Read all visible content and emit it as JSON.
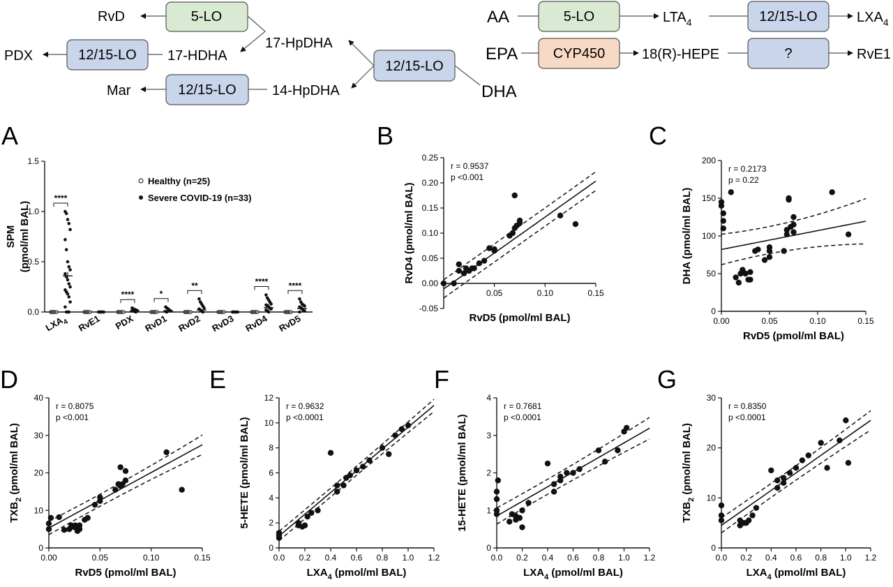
{
  "pathways": {
    "nodes": {
      "rvd": "RvD",
      "pdx": "PDX",
      "mar": "Mar",
      "hdha17": "17-HDHA",
      "hpdha14": "14-HpDHA",
      "hpdha17": "17-HpDHA",
      "dha": "DHA",
      "aa": "AA",
      "epa": "EPA",
      "lta4": "LTA",
      "lta4_sub": "4",
      "lxa4": "LXA",
      "lxa4_sub": "4",
      "hepe18r": "18(R)-HEPE",
      "rve1": "RvE1"
    },
    "enzymes": {
      "lo5": "5-LO",
      "lo1215": "12/15-LO",
      "cyp450": "CYP450",
      "unknown": "?"
    },
    "enzyme_colors": {
      "lo5": "#d9ead3",
      "lo1215": "#c9d5ea",
      "cyp450": "#f8d9c6"
    }
  },
  "chart_data": [
    {
      "panel": "A",
      "type": "scatter",
      "ylabel": "SPM",
      "ylabel2": "(pmol/ml BAL)",
      "ylim": [
        0,
        1.5
      ],
      "yticks": [
        "0.0",
        "0.5",
        "1.0",
        "1.5"
      ],
      "categories": [
        "LXA4",
        "RvE1",
        "PDX",
        "RvD1",
        "RvD2",
        "RvD3",
        "RvD4",
        "RvD5"
      ],
      "category_labels": [
        {
          "text": "LXA",
          "sub": "4"
        },
        {
          "text": "RvE1",
          "sub": ""
        },
        {
          "text": "PDX",
          "sub": ""
        },
        {
          "text": "RvD1",
          "sub": ""
        },
        {
          "text": "RvD2",
          "sub": ""
        },
        {
          "text": "RvD3",
          "sub": ""
        },
        {
          "text": "RvD4",
          "sub": ""
        },
        {
          "text": "RvD5",
          "sub": ""
        }
      ],
      "series": [
        {
          "name": "Healthy (n=25)",
          "marker": "open-circle",
          "values": [
            [
              0,
              0,
              0,
              0,
              0,
              0
            ],
            [
              0,
              0,
              0,
              0,
              0,
              0
            ],
            [
              0,
              0,
              0,
              0,
              0,
              0
            ],
            [
              0,
              0,
              0,
              0,
              0,
              0
            ],
            [
              0,
              0,
              0,
              0,
              0,
              0
            ],
            [
              0,
              0,
              0,
              0,
              0,
              0
            ],
            [
              0,
              0,
              0,
              0,
              0,
              0
            ],
            [
              0,
              0,
              0,
              0,
              0,
              0
            ]
          ]
        },
        {
          "name": "Severe COVID-19 (n=33)",
          "marker": "filled-circle",
          "values": [
            [
              1.0,
              0.98,
              0.92,
              0.88,
              0.82,
              0.72,
              0.62,
              0.5,
              0.45,
              0.42,
              0.38,
              0.35,
              0.32,
              0.28,
              0.25,
              0.22,
              0.2,
              0.18,
              0.15,
              0.1,
              0.05,
              0,
              0,
              0
            ],
            [
              0,
              0,
              0,
              0,
              0,
              0,
              0
            ],
            [
              0.04,
              0.03,
              0.025,
              0.02,
              0.015,
              0.01,
              0.01,
              0.005,
              0
            ],
            [
              0.05,
              0.04,
              0.03,
              0.02,
              0.01,
              0.005,
              0
            ],
            [
              0.13,
              0.1,
              0.08,
              0.06,
              0.04,
              0.03,
              0.02,
              0.01,
              0
            ],
            [
              0,
              0,
              0,
              0,
              0,
              0
            ],
            [
              0.17,
              0.14,
              0.12,
              0.1,
              0.08,
              0.07,
              0.06,
              0.05,
              0.04,
              0.03,
              0.02,
              0.01,
              0
            ],
            [
              0.13,
              0.1,
              0.08,
              0.07,
              0.06,
              0.05,
              0.04,
              0.03,
              0.02,
              0.01,
              0
            ]
          ],
          "means": [
            0.36,
            0,
            0.012,
            0.012,
            0.02,
            0,
            0.043,
            0.035
          ]
        }
      ],
      "significance": [
        {
          "category": "LXA4",
          "label": "****"
        },
        {
          "category": "PDX",
          "label": "****"
        },
        {
          "category": "RvD1",
          "label": "*"
        },
        {
          "category": "RvD2",
          "label": "**"
        },
        {
          "category": "RvD4",
          "label": "****"
        },
        {
          "category": "RvD5",
          "label": "****"
        }
      ]
    },
    {
      "panel": "B",
      "type": "scatter",
      "xlabel": "RvD5 (pmol/ml BAL)",
      "ylabel": "RvD4 (pmol/ml BAL)",
      "ylabel_sub": "",
      "xlim": [
        0,
        0.15
      ],
      "ylim": [
        -0.05,
        0.25
      ],
      "xticks": [
        "0.05",
        "0.10",
        "0.15"
      ],
      "yticks": [
        "-0.05",
        "0.00",
        "0.05",
        "0.10",
        "0.15",
        "0.20",
        "0.25"
      ],
      "annotation": [
        "r = 0.9537",
        "p <0.001"
      ],
      "fit": {
        "intercept": -0.011,
        "slope": 1.43,
        "ci": 0.018,
        "ci_growth": 0.12
      },
      "points": [
        [
          0,
          0
        ],
        [
          0.01,
          0
        ],
        [
          0.015,
          0.038
        ],
        [
          0.015,
          0.025
        ],
        [
          0.02,
          0.02
        ],
        [
          0.022,
          0.03
        ],
        [
          0.025,
          0.025
        ],
        [
          0.028,
          0.03
        ],
        [
          0.03,
          0.03
        ],
        [
          0.035,
          0.04
        ],
        [
          0.04,
          0.045
        ],
        [
          0.045,
          0.07
        ],
        [
          0.05,
          0.065
        ],
        [
          0.05,
          0.068
        ],
        [
          0.065,
          0.095
        ],
        [
          0.068,
          0.1
        ],
        [
          0.07,
          0.175
        ],
        [
          0.07,
          0.11
        ],
        [
          0.072,
          0.115
        ],
        [
          0.075,
          0.12
        ],
        [
          0.075,
          0.125
        ],
        [
          0.115,
          0.135
        ],
        [
          0.13,
          0.118
        ]
      ]
    },
    {
      "panel": "C",
      "type": "scatter",
      "xlabel": "RvD5 (pmol/ml BAL)",
      "ylabel": "DHA (pmol/ml BAL)",
      "ylabel_sub": "",
      "xlim": [
        0,
        0.15
      ],
      "ylim": [
        0,
        200
      ],
      "xticks": [
        "0.00",
        "0.05",
        "0.10",
        "0.15"
      ],
      "yticks": [
        "0",
        "50",
        "100",
        "150",
        "200"
      ],
      "annotation": [
        "r = 0.2173",
        "p = 0.22"
      ],
      "fit": {
        "intercept": 82,
        "slope": 250,
        "ci": 18,
        "ci_growth": 2200
      },
      "points": [
        [
          0,
          145
        ],
        [
          0,
          140
        ],
        [
          0.002,
          130
        ],
        [
          0.002,
          120
        ],
        [
          0.002,
          110
        ],
        [
          0.01,
          158
        ],
        [
          0.015,
          45
        ],
        [
          0.018,
          38
        ],
        [
          0.02,
          50
        ],
        [
          0.022,
          55
        ],
        [
          0.025,
          50
        ],
        [
          0.028,
          42
        ],
        [
          0.03,
          42
        ],
        [
          0.03,
          52
        ],
        [
          0.035,
          80
        ],
        [
          0.038,
          82
        ],
        [
          0.045,
          68
        ],
        [
          0.05,
          85
        ],
        [
          0.05,
          80
        ],
        [
          0.05,
          72
        ],
        [
          0.065,
          80
        ],
        [
          0.068,
          102
        ],
        [
          0.068,
          108
        ],
        [
          0.07,
          150
        ],
        [
          0.07,
          148
        ],
        [
          0.072,
          112
        ],
        [
          0.075,
          105
        ],
        [
          0.075,
          115
        ],
        [
          0.075,
          125
        ],
        [
          0.115,
          158
        ],
        [
          0.132,
          102
        ]
      ]
    },
    {
      "panel": "D",
      "type": "scatter",
      "xlabel": "RvD5 (pmol/ml BAL)",
      "ylabel": "TXB",
      "ylabel_sub": "2",
      "xlim": [
        0,
        0.15
      ],
      "ylim": [
        0,
        40
      ],
      "xticks": [
        "0.00",
        "0.05",
        "0.10",
        "0.15"
      ],
      "yticks": [
        "0",
        "10",
        "20",
        "30",
        "40"
      ],
      "annotation": [
        "r = 0.8075",
        "p <0.001"
      ],
      "fit": {
        "intercept": 5.3,
        "slope": 148,
        "ci": 1.6,
        "ci_growth": 180
      },
      "points": [
        [
          0,
          5
        ],
        [
          0,
          6.5
        ],
        [
          0.002,
          8
        ],
        [
          0.01,
          8.2
        ],
        [
          0.015,
          4.8
        ],
        [
          0.02,
          5
        ],
        [
          0.022,
          6
        ],
        [
          0.025,
          5.5
        ],
        [
          0.026,
          6
        ],
        [
          0.028,
          4.5
        ],
        [
          0.03,
          5
        ],
        [
          0.03,
          6
        ],
        [
          0.035,
          7.5
        ],
        [
          0.038,
          8
        ],
        [
          0.045,
          11.5
        ],
        [
          0.05,
          12.5
        ],
        [
          0.05,
          13.5
        ],
        [
          0.065,
          15.5
        ],
        [
          0.068,
          17
        ],
        [
          0.07,
          21.5
        ],
        [
          0.07,
          16.5
        ],
        [
          0.072,
          17
        ],
        [
          0.075,
          18
        ],
        [
          0.075,
          20.5
        ],
        [
          0.115,
          25.5
        ],
        [
          0.13,
          15.5
        ]
      ]
    },
    {
      "panel": "E",
      "type": "scatter",
      "xlabel": "LXA",
      "xlabel_sub": "4",
      "xlabel_tail": " (pmol/ml BAL)",
      "ylabel": "5-HETE (pmol/ml BAL)",
      "ylabel_sub": "",
      "xlim": [
        0,
        1.2
      ],
      "ylim": [
        0,
        12
      ],
      "xticks": [
        "0.0",
        "0.2",
        "0.4",
        "0.6",
        "0.8",
        "1.0",
        "1.2"
      ],
      "yticks": [
        "0",
        "2",
        "4",
        "6",
        "8",
        "10",
        "12"
      ],
      "annotation": [
        "r = 0.9632",
        "p <0.0001"
      ],
      "fit": {
        "intercept": 0.95,
        "slope": 8.7,
        "ci": 0.35,
        "ci_growth": 0.4
      },
      "points": [
        [
          0,
          0.8
        ],
        [
          0,
          1
        ],
        [
          0,
          1.2
        ],
        [
          0.15,
          1.8
        ],
        [
          0.15,
          2
        ],
        [
          0.18,
          1.7
        ],
        [
          0.2,
          1.8
        ],
        [
          0.22,
          2.5
        ],
        [
          0.25,
          2.8
        ],
        [
          0.3,
          3
        ],
        [
          0.4,
          7.6
        ],
        [
          0.45,
          4.5
        ],
        [
          0.45,
          5
        ],
        [
          0.5,
          5
        ],
        [
          0.52,
          5.6
        ],
        [
          0.55,
          5.8
        ],
        [
          0.6,
          6.2
        ],
        [
          0.65,
          6.5
        ],
        [
          0.7,
          7
        ],
        [
          0.8,
          8
        ],
        [
          0.85,
          7.5
        ],
        [
          0.9,
          9
        ],
        [
          0.95,
          9.5
        ],
        [
          1.0,
          9.8
        ]
      ]
    },
    {
      "panel": "F",
      "type": "scatter",
      "xlabel": "LXA",
      "xlabel_sub": "4",
      "xlabel_tail": " (pmol/ml BAL)",
      "ylabel": "15-HETE (pmol/ml BAL)",
      "ylabel_sub": "",
      "xlim": [
        0,
        1.2
      ],
      "ylim": [
        0,
        4
      ],
      "xticks": [
        "0.0",
        "0.2",
        "0.4",
        "0.6",
        "0.8",
        "1.0",
        "1.2"
      ],
      "yticks": [
        "0",
        "1",
        "2",
        "3",
        "4"
      ],
      "annotation": [
        "r = 0.7681",
        "p <0.0001"
      ],
      "fit": {
        "intercept": 0.85,
        "slope": 1.95,
        "ci": 0.2,
        "ci_growth": 0.25
      },
      "points": [
        [
          0,
          0.9
        ],
        [
          0,
          1
        ],
        [
          0,
          1.3
        ],
        [
          0,
          1.5
        ],
        [
          0.01,
          1.8
        ],
        [
          0.1,
          0.7
        ],
        [
          0.12,
          0.9
        ],
        [
          0.15,
          0.75
        ],
        [
          0.15,
          0.85
        ],
        [
          0.18,
          0.8
        ],
        [
          0.2,
          1
        ],
        [
          0.2,
          0.55
        ],
        [
          0.25,
          1.2
        ],
        [
          0.4,
          2.25
        ],
        [
          0.45,
          1.7
        ],
        [
          0.45,
          1.5
        ],
        [
          0.5,
          1.8
        ],
        [
          0.5,
          1.9
        ],
        [
          0.55,
          2
        ],
        [
          0.6,
          2
        ],
        [
          0.65,
          2.1
        ],
        [
          0.8,
          2.6
        ],
        [
          0.85,
          2.3
        ],
        [
          0.95,
          2.6
        ],
        [
          1.0,
          3.1
        ],
        [
          1.02,
          3.2
        ]
      ]
    },
    {
      "panel": "G",
      "type": "scatter",
      "xlabel": "LXA",
      "xlabel_sub": "4",
      "xlabel_tail": " (pmol/ml BAL)",
      "ylabel": "TXB",
      "ylabel_sub": "2",
      "xlim": [
        0,
        1.2
      ],
      "ylim": [
        0,
        30
      ],
      "xticks": [
        "0.0",
        "0.2",
        "0.4",
        "0.6",
        "0.8",
        "1.0",
        "1.2"
      ],
      "yticks": [
        "0",
        "10",
        "20",
        "30"
      ],
      "annotation": [
        "r = 0.8350",
        "p <0.0001"
      ],
      "fit": {
        "intercept": 4.5,
        "slope": 17.5,
        "ci": 1.4,
        "ci_growth": 1.5
      },
      "points": [
        [
          0,
          5.5
        ],
        [
          0,
          6.5
        ],
        [
          0,
          8.5
        ],
        [
          0.15,
          4.5
        ],
        [
          0.15,
          5.5
        ],
        [
          0.18,
          5
        ],
        [
          0.2,
          5
        ],
        [
          0.22,
          5.5
        ],
        [
          0.25,
          6.5
        ],
        [
          0.28,
          8
        ],
        [
          0.4,
          15.5
        ],
        [
          0.45,
          12
        ],
        [
          0.45,
          13.5
        ],
        [
          0.5,
          13
        ],
        [
          0.5,
          14
        ],
        [
          0.55,
          15
        ],
        [
          0.6,
          16
        ],
        [
          0.65,
          17.5
        ],
        [
          0.7,
          18.5
        ],
        [
          0.8,
          21
        ],
        [
          0.85,
          16
        ],
        [
          0.95,
          21.5
        ],
        [
          1.0,
          25.5
        ],
        [
          1.02,
          17
        ]
      ]
    }
  ]
}
